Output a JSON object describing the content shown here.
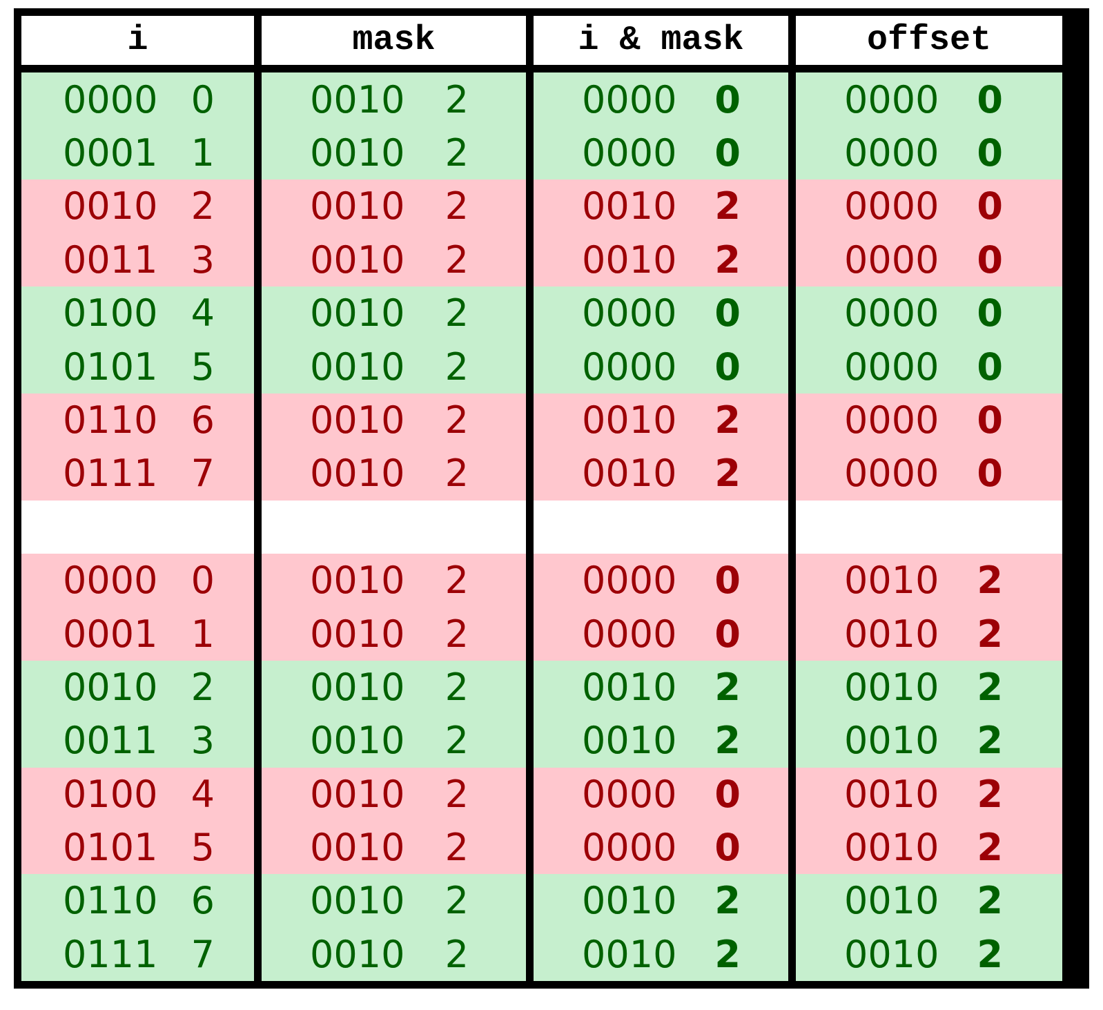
{
  "headers": [
    "i",
    "mask",
    "i & mask",
    "offset"
  ],
  "rows": [
    {
      "status": "green",
      "cells": [
        [
          "0000",
          "0"
        ],
        [
          "0010",
          "2"
        ],
        [
          "0000",
          "0"
        ],
        [
          "0000",
          "0"
        ]
      ]
    },
    {
      "status": "green",
      "cells": [
        [
          "0001",
          "1"
        ],
        [
          "0010",
          "2"
        ],
        [
          "0000",
          "0"
        ],
        [
          "0000",
          "0"
        ]
      ]
    },
    {
      "status": "red",
      "cells": [
        [
          "0010",
          "2"
        ],
        [
          "0010",
          "2"
        ],
        [
          "0010",
          "2"
        ],
        [
          "0000",
          "0"
        ]
      ]
    },
    {
      "status": "red",
      "cells": [
        [
          "0011",
          "3"
        ],
        [
          "0010",
          "2"
        ],
        [
          "0010",
          "2"
        ],
        [
          "0000",
          "0"
        ]
      ]
    },
    {
      "status": "green",
      "cells": [
        [
          "0100",
          "4"
        ],
        [
          "0010",
          "2"
        ],
        [
          "0000",
          "0"
        ],
        [
          "0000",
          "0"
        ]
      ]
    },
    {
      "status": "green",
      "cells": [
        [
          "0101",
          "5"
        ],
        [
          "0010",
          "2"
        ],
        [
          "0000",
          "0"
        ],
        [
          "0000",
          "0"
        ]
      ]
    },
    {
      "status": "red",
      "cells": [
        [
          "0110",
          "6"
        ],
        [
          "0010",
          "2"
        ],
        [
          "0010",
          "2"
        ],
        [
          "0000",
          "0"
        ]
      ]
    },
    {
      "status": "red",
      "cells": [
        [
          "0111",
          "7"
        ],
        [
          "0010",
          "2"
        ],
        [
          "0010",
          "2"
        ],
        [
          "0000",
          "0"
        ]
      ]
    },
    {
      "status": "gap",
      "cells": [
        [
          "",
          ""
        ],
        [
          "",
          ""
        ],
        [
          "",
          ""
        ],
        [
          "",
          ""
        ]
      ]
    },
    {
      "status": "red",
      "cells": [
        [
          "0000",
          "0"
        ],
        [
          "0010",
          "2"
        ],
        [
          "0000",
          "0"
        ],
        [
          "0010",
          "2"
        ]
      ]
    },
    {
      "status": "red",
      "cells": [
        [
          "0001",
          "1"
        ],
        [
          "0010",
          "2"
        ],
        [
          "0000",
          "0"
        ],
        [
          "0010",
          "2"
        ]
      ]
    },
    {
      "status": "green",
      "cells": [
        [
          "0010",
          "2"
        ],
        [
          "0010",
          "2"
        ],
        [
          "0010",
          "2"
        ],
        [
          "0010",
          "2"
        ]
      ]
    },
    {
      "status": "green",
      "cells": [
        [
          "0011",
          "3"
        ],
        [
          "0010",
          "2"
        ],
        [
          "0010",
          "2"
        ],
        [
          "0010",
          "2"
        ]
      ]
    },
    {
      "status": "red",
      "cells": [
        [
          "0100",
          "4"
        ],
        [
          "0010",
          "2"
        ],
        [
          "0000",
          "0"
        ],
        [
          "0010",
          "2"
        ]
      ]
    },
    {
      "status": "red",
      "cells": [
        [
          "0101",
          "5"
        ],
        [
          "0010",
          "2"
        ],
        [
          "0000",
          "0"
        ],
        [
          "0010",
          "2"
        ]
      ]
    },
    {
      "status": "green",
      "cells": [
        [
          "0110",
          "6"
        ],
        [
          "0010",
          "2"
        ],
        [
          "0010",
          "2"
        ],
        [
          "0010",
          "2"
        ]
      ]
    },
    {
      "status": "green",
      "cells": [
        [
          "0111",
          "7"
        ],
        [
          "0010",
          "2"
        ],
        [
          "0010",
          "2"
        ],
        [
          "0010",
          "2"
        ]
      ]
    }
  ],
  "colors": {
    "green_bg": "#c6efce",
    "green_text": "#006100",
    "red_bg": "#ffc7ce",
    "red_text": "#9c0006"
  }
}
